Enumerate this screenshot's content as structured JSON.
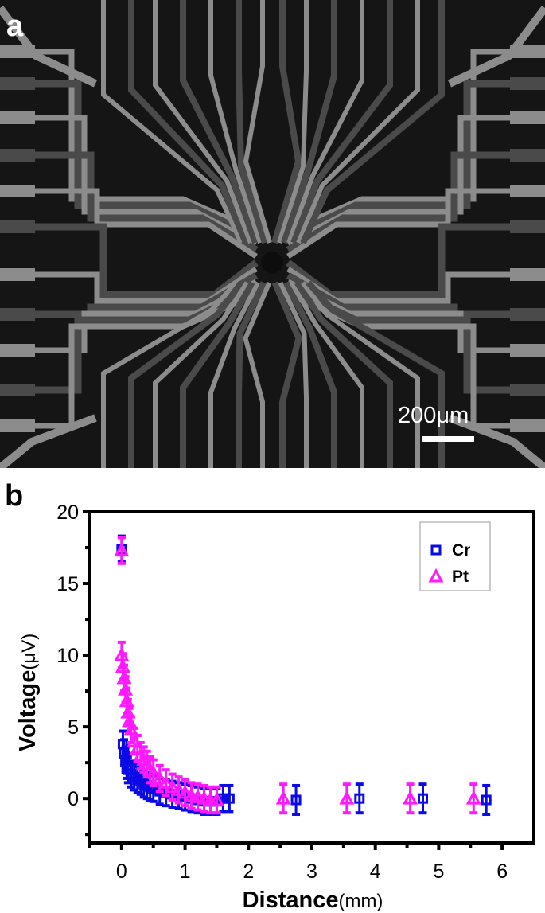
{
  "panel_a": {
    "label": "a",
    "description": "SEM micrograph of radial electrode array",
    "scale_bar": {
      "text": "200μm"
    }
  },
  "panel_b": {
    "label": "b"
  },
  "colors": {
    "cr": "#0a0ae6",
    "pt": "#ff19ff",
    "axis": "#000000",
    "sem_background": "#151515",
    "sem_trace_bright": "#8c8c8c",
    "sem_trace_dark": "#4a4a4a"
  },
  "chart_data": {
    "type": "scatter",
    "title": "",
    "xlabel": "Distance",
    "xlabel_unit": "(mm)",
    "ylabel": "Voltage",
    "ylabel_unit": "(μV)",
    "xlim": [
      -0.5,
      6.5
    ],
    "ylim": [
      -3.1,
      20
    ],
    "xticks": [
      0,
      1,
      2,
      3,
      4,
      5,
      6
    ],
    "yticks": [
      0,
      5,
      10,
      15,
      20
    ],
    "grid": false,
    "legend": {
      "position": "upper right",
      "entries": [
        "Cr",
        "Pt"
      ]
    },
    "error_bars": true,
    "series": [
      {
        "name": "Cr",
        "marker": "square",
        "x": [
          0.0,
          0.02,
          0.04,
          0.06,
          0.08,
          0.1,
          0.15,
          0.2,
          0.25,
          0.3,
          0.35,
          0.4,
          0.45,
          0.5,
          0.6,
          0.7,
          0.8,
          0.9,
          1.0,
          1.1,
          1.2,
          1.3,
          1.4,
          1.5,
          1.6,
          1.7,
          2.75,
          3.75,
          4.75,
          5.75
        ],
        "y": [
          17.4,
          3.8,
          3.2,
          2.7,
          2.3,
          2.0,
          1.7,
          1.5,
          1.3,
          1.2,
          1.0,
          0.9,
          0.8,
          0.7,
          0.5,
          0.4,
          0.3,
          0.2,
          0.1,
          0.0,
          -0.1,
          -0.2,
          -0.2,
          -0.2,
          0.0,
          0.0,
          -0.1,
          0.0,
          0.0,
          -0.1
        ],
        "err": [
          0.9,
          0.9,
          0.9,
          0.9,
          0.9,
          0.9,
          0.9,
          0.9,
          0.9,
          0.9,
          0.9,
          0.9,
          0.9,
          0.9,
          0.9,
          0.9,
          0.9,
          0.9,
          0.9,
          0.9,
          0.9,
          0.9,
          0.9,
          0.9,
          0.9,
          0.9,
          1.0,
          1.0,
          1.0,
          1.0
        ]
      },
      {
        "name": "Pt",
        "marker": "triangle",
        "x": [
          0.0,
          0.0,
          0.02,
          0.04,
          0.06,
          0.08,
          0.1,
          0.12,
          0.15,
          0.2,
          0.25,
          0.3,
          0.35,
          0.4,
          0.45,
          0.5,
          0.6,
          0.7,
          0.8,
          0.9,
          1.0,
          1.1,
          1.2,
          1.3,
          1.4,
          1.5,
          2.55,
          3.55,
          4.55,
          5.55
        ],
        "y": [
          17.3,
          10.0,
          9.2,
          8.4,
          7.6,
          6.8,
          6.0,
          5.4,
          4.8,
          4.0,
          3.5,
          3.0,
          2.7,
          2.4,
          2.0,
          1.8,
          1.4,
          1.1,
          0.8,
          0.6,
          0.4,
          0.2,
          0.1,
          0.0,
          -0.1,
          -0.1,
          0.0,
          0.0,
          0.0,
          0.0
        ],
        "err": [
          0.9,
          0.9,
          0.9,
          0.9,
          0.9,
          0.9,
          0.9,
          0.9,
          0.9,
          0.9,
          0.9,
          0.9,
          0.9,
          0.9,
          0.9,
          0.9,
          0.9,
          0.9,
          0.9,
          0.9,
          0.9,
          0.9,
          0.9,
          0.9,
          0.9,
          0.9,
          1.0,
          1.0,
          1.0,
          1.0
        ]
      }
    ]
  }
}
